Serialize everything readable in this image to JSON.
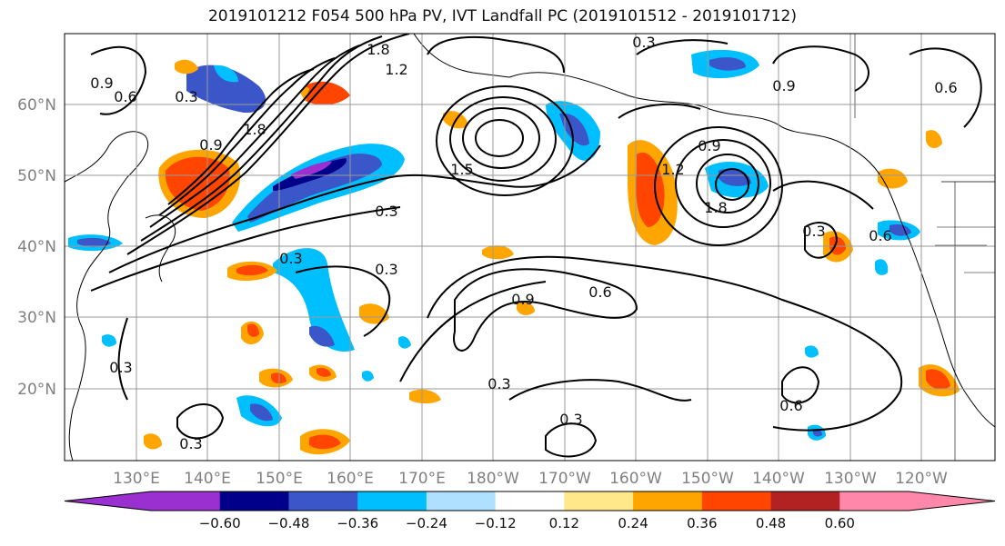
{
  "title": "2019101212 F054 500 hPa PV, IVT Landfall PC (2019101512 - 2019101712)",
  "lat_labels": [
    "60°N",
    "50°N",
    "40°N",
    "30°N",
    "20°N"
  ],
  "lon_labels": [
    "130°E",
    "140°E",
    "150°E",
    "160°E",
    "170°E",
    "180°W",
    "170°W",
    "160°W",
    "150°W",
    "140°W",
    "130°W",
    "120°W"
  ],
  "colorbar": {
    "colors": [
      "#9b30d0",
      "#00008b",
      "#3a56c8",
      "#00bfff",
      "#b0e0ff",
      "#ffffff",
      "#ffe88a",
      "#ffa500",
      "#ff4500",
      "#b22222",
      "#ff88aa"
    ],
    "tick_labels": [
      "−0.60",
      "−0.48",
      "−0.36",
      "−0.24",
      "−0.12",
      "0.12",
      "0.24",
      "0.36",
      "0.48",
      "0.60"
    ]
  },
  "contour_labels": [
    {
      "text": "0.6"
    },
    {
      "text": "0.3"
    },
    {
      "text": "0.3"
    },
    {
      "text": "0.9"
    },
    {
      "text": "0.3"
    },
    {
      "text": "0.3"
    },
    {
      "text": "0.3"
    },
    {
      "text": "0.3"
    },
    {
      "text": "0.9"
    },
    {
      "text": "0.6"
    },
    {
      "text": "0.3"
    },
    {
      "text": "0.3"
    },
    {
      "text": "0.6"
    },
    {
      "text": "0.9"
    },
    {
      "text": "0.6"
    },
    {
      "text": "0.6"
    },
    {
      "text": "1.8"
    },
    {
      "text": "1.2"
    },
    {
      "text": "1.8"
    },
    {
      "text": "1.5"
    },
    {
      "text": "0.3"
    },
    {
      "text": "0.9"
    },
    {
      "text": "1.2"
    },
    {
      "text": "0.9"
    },
    {
      "text": "0.3"
    },
    {
      "text": "1.8"
    }
  ]
}
